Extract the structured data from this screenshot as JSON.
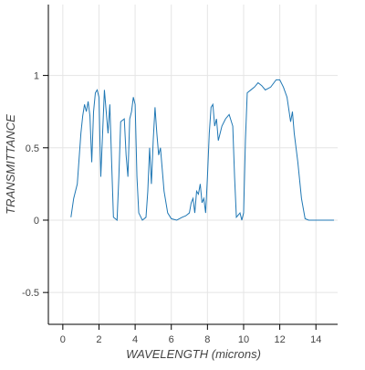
{
  "chart_data": {
    "type": "line",
    "x_label": "WAVELENGTH (microns)",
    "y_label": "TRANSMITTANCE",
    "x": [
      0.45,
      0.6,
      0.8,
      1.0,
      1.1,
      1.2,
      1.3,
      1.4,
      1.5,
      1.6,
      1.7,
      1.8,
      1.9,
      2.0,
      2.1,
      2.2,
      2.3,
      2.4,
      2.5,
      2.6,
      2.7,
      2.8,
      3.0,
      3.1,
      3.2,
      3.4,
      3.5,
      3.6,
      3.7,
      3.8,
      3.9,
      4.0,
      4.1,
      4.2,
      4.4,
      4.6,
      4.7,
      4.8,
      4.9,
      5.0,
      5.1,
      5.2,
      5.3,
      5.4,
      5.5,
      5.6,
      5.8,
      6.0,
      6.3,
      6.6,
      6.8,
      7.0,
      7.1,
      7.2,
      7.3,
      7.4,
      7.5,
      7.6,
      7.7,
      7.8,
      7.9,
      8.0,
      8.1,
      8.2,
      8.3,
      8.4,
      8.5,
      8.6,
      8.8,
      9.0,
      9.2,
      9.4,
      9.5,
      9.6,
      9.8,
      9.9,
      10.0,
      10.1,
      10.2,
      10.4,
      10.6,
      10.8,
      11.0,
      11.2,
      11.5,
      11.8,
      12.0,
      12.2,
      12.4,
      12.6,
      12.7,
      12.8,
      13.0,
      13.2,
      13.4,
      13.6,
      15.0
    ],
    "series": [
      {
        "name": "transmittance",
        "color": "#1f77b4",
        "values": [
          0.02,
          0.15,
          0.25,
          0.6,
          0.72,
          0.8,
          0.75,
          0.82,
          0.72,
          0.4,
          0.75,
          0.88,
          0.9,
          0.85,
          0.3,
          0.6,
          0.9,
          0.75,
          0.6,
          0.8,
          0.4,
          0.02,
          0.0,
          0.3,
          0.68,
          0.7,
          0.45,
          0.3,
          0.7,
          0.75,
          0.85,
          0.8,
          0.3,
          0.05,
          0.0,
          0.02,
          0.2,
          0.5,
          0.25,
          0.55,
          0.78,
          0.6,
          0.45,
          0.5,
          0.35,
          0.2,
          0.05,
          0.01,
          0.0,
          0.02,
          0.03,
          0.05,
          0.12,
          0.15,
          0.05,
          0.2,
          0.18,
          0.25,
          0.12,
          0.15,
          0.05,
          0.3,
          0.6,
          0.78,
          0.8,
          0.65,
          0.7,
          0.55,
          0.65,
          0.7,
          0.73,
          0.65,
          0.3,
          0.02,
          0.05,
          0.0,
          0.05,
          0.55,
          0.88,
          0.9,
          0.92,
          0.95,
          0.93,
          0.9,
          0.92,
          0.97,
          0.97,
          0.92,
          0.85,
          0.68,
          0.75,
          0.6,
          0.4,
          0.15,
          0.01,
          0.0,
          0.0
        ]
      }
    ],
    "xlim": [
      -0.8,
      15.2
    ],
    "ylim": [
      -0.72,
      1.49
    ],
    "xticks": [
      0,
      2,
      4,
      6,
      8,
      10,
      12,
      14
    ],
    "yticks": [
      -0.5,
      0,
      0.5,
      1
    ],
    "grid": true
  }
}
